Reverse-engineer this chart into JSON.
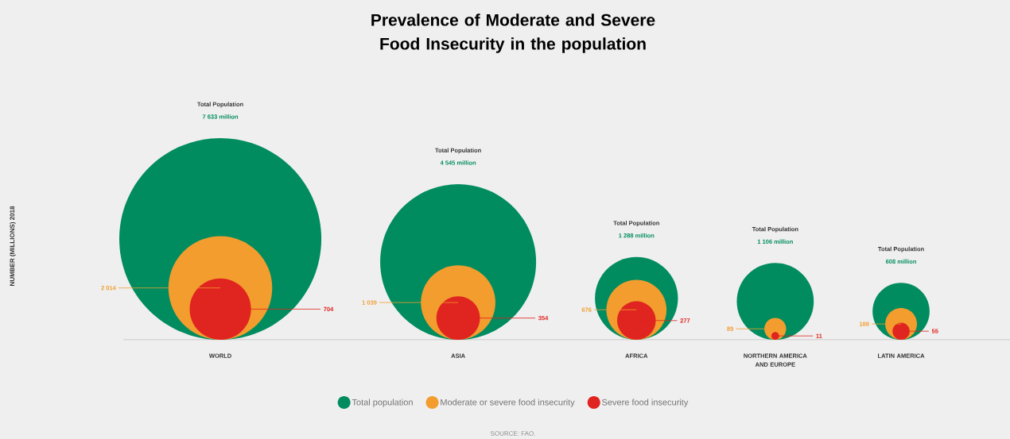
{
  "chart_data": {
    "type": "other",
    "title": "Prevalence of Moderate and Severe Food Insecurity in the population",
    "ylabel": "NUMBER (MILLIONS) 2018",
    "categories": [
      "WORLD",
      "ASIA",
      "AFRICA",
      "NORTHERN AMERICA AND EUROPE",
      "LATIN AMERICA"
    ],
    "series": [
      {
        "name": "Total population",
        "color": "#008c5f",
        "values": [
          7633,
          4545,
          1288,
          1106,
          608
        ],
        "value_labels": [
          "7 633 million",
          "4 545 million",
          "1 288 million",
          "1 106 million",
          "608 million"
        ]
      },
      {
        "name": "Moderate or severe food insecurity",
        "color": "#f29d2e",
        "values": [
          2014,
          1039,
          676,
          89,
          188
        ],
        "value_labels": [
          "2 014",
          "1 039",
          "676",
          "89",
          "188"
        ]
      },
      {
        "name": "Severe food insecurity",
        "color": "#e0241f",
        "values": [
          704,
          354,
          277,
          11,
          55
        ],
        "value_labels": [
          "704",
          "354",
          "277",
          "11",
          "55"
        ]
      }
    ],
    "annotations": [
      {
        "text": "Total Population",
        "x": "WORLD"
      },
      {
        "text": "Total Population",
        "x": "ASIA"
      },
      {
        "text": "Total Population",
        "x": "AFRICA"
      },
      {
        "text": "Total Population",
        "x": "NORTHERN AMERICA AND EUROPE"
      },
      {
        "text": "Total Population",
        "x": "LATIN AMERICA"
      },
      "SOURCE: FAO."
    ],
    "legend": "bottom"
  }
}
